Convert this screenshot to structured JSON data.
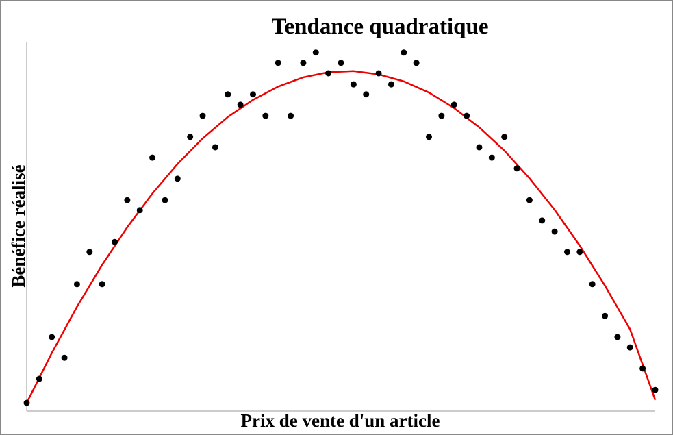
{
  "chart_data": {
    "type": "scatter",
    "title": "Tendance quadratique",
    "x_label": "Prix de vente d'un article",
    "y_label": "Bénéfice réalisé",
    "x": [
      0,
      1,
      2,
      3,
      4,
      5,
      6,
      7,
      8,
      9,
      10,
      11,
      12,
      13,
      14,
      15,
      16,
      17,
      18,
      19,
      20,
      21,
      22,
      23,
      24,
      25,
      26,
      27,
      28,
      29,
      30,
      31,
      32,
      33,
      34,
      35,
      36,
      37,
      38,
      39,
      40,
      41,
      42,
      43,
      44,
      45,
      46,
      47,
      48,
      49,
      50
    ],
    "series": [
      {
        "color": "#000000",
        "values": [
          2.2,
          8.7,
          20.0,
          14.4,
          34.3,
          43.0,
          34.3,
          45.7,
          57.0,
          54.3,
          68.5,
          57.0,
          62.8,
          74.1,
          79.8,
          71.3,
          85.6,
          82.8,
          85.6,
          79.8,
          94.1,
          79.8,
          94.1,
          96.9,
          91.3,
          94.1,
          88.3,
          85.6,
          91.3,
          88.3,
          96.9,
          94.1,
          74.1,
          79.8,
          82.8,
          79.8,
          71.3,
          68.5,
          74.1,
          65.6,
          57.0,
          51.5,
          48.5,
          43.0,
          43.0,
          34.3,
          25.7,
          20.0,
          17.2,
          11.5,
          5.7
        ]
      }
    ],
    "trend": {
      "type": "line",
      "color": "#ee0000",
      "x": [
        0,
        2,
        4,
        6,
        8,
        10,
        12,
        14,
        16,
        18,
        20,
        22,
        24,
        26,
        28,
        30,
        32,
        34,
        36,
        38,
        40,
        42,
        44,
        46,
        48,
        50
      ],
      "values": [
        2.2,
        15.7,
        28.2,
        39.5,
        49.7,
        58.8,
        66.8,
        73.7,
        79.5,
        84.1,
        87.7,
        90.2,
        91.6,
        91.9,
        91.0,
        89.1,
        86.1,
        81.9,
        76.7,
        70.4,
        62.9,
        54.4,
        44.7,
        33.9,
        22.1,
        3.0
      ]
    },
    "xlim": [
      0,
      50
    ],
    "ylim": [
      0,
      100
    ]
  }
}
